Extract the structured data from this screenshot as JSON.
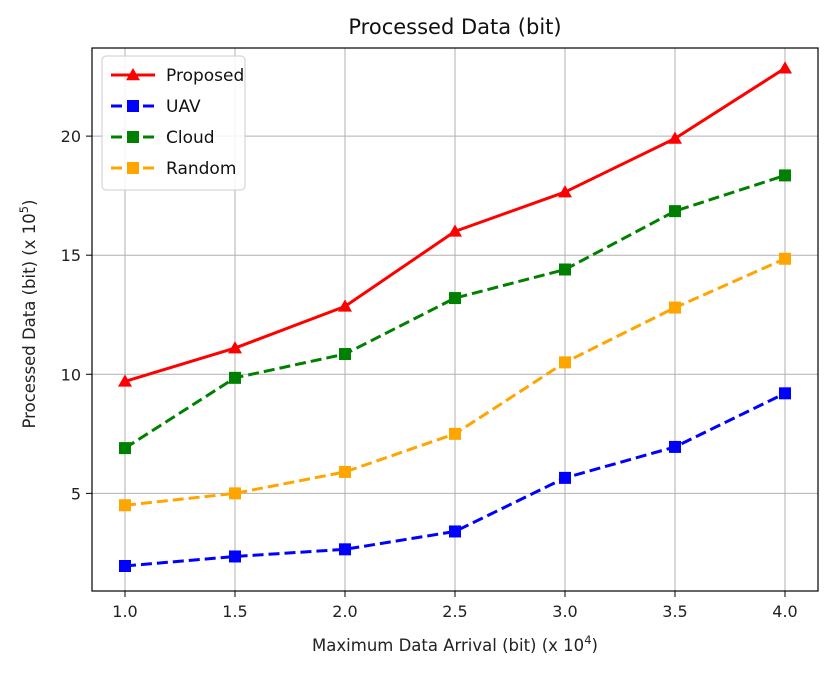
{
  "chart_data": {
    "type": "line",
    "title": "Processed Data (bit)",
    "xlabel": "Maximum Data Arrival (bit) (x 10",
    "xlabel_exp": "4",
    "xlabel_suffix": ")",
    "ylabel": "Processed Data (bit) (x 10",
    "ylabel_exp": "5",
    "ylabel_suffix": ")",
    "x": [
      1.0,
      1.5,
      2.0,
      2.5,
      3.0,
      3.5,
      4.0
    ],
    "xticks": [
      "1.0",
      "1.5",
      "2.0",
      "2.5",
      "3.0",
      "3.5",
      "4.0"
    ],
    "yticks": [
      5,
      10,
      15,
      20
    ],
    "xlim": [
      0.85,
      4.15
    ],
    "ylim": [
      0.9,
      23.7
    ],
    "grid": true,
    "legend_position": "top-left",
    "series": [
      {
        "name": "Proposed",
        "color": "#ff0000",
        "marker": "triangle",
        "dash": "solid",
        "values": [
          9.7,
          11.1,
          12.85,
          16.0,
          17.65,
          19.9,
          22.85
        ]
      },
      {
        "name": "UAV",
        "color": "#0000ff",
        "marker": "square",
        "dash": "dashed",
        "values": [
          1.95,
          2.35,
          2.65,
          3.4,
          5.65,
          6.95,
          9.2
        ]
      },
      {
        "name": "Cloud",
        "color": "#008000",
        "marker": "square",
        "dash": "dashed",
        "values": [
          6.9,
          9.85,
          10.85,
          13.2,
          14.4,
          16.85,
          18.35
        ]
      },
      {
        "name": "Random",
        "color": "#ffa500",
        "marker": "square",
        "dash": "dashed",
        "values": [
          4.5,
          5.0,
          5.9,
          7.5,
          10.5,
          12.8,
          14.85
        ]
      }
    ]
  }
}
